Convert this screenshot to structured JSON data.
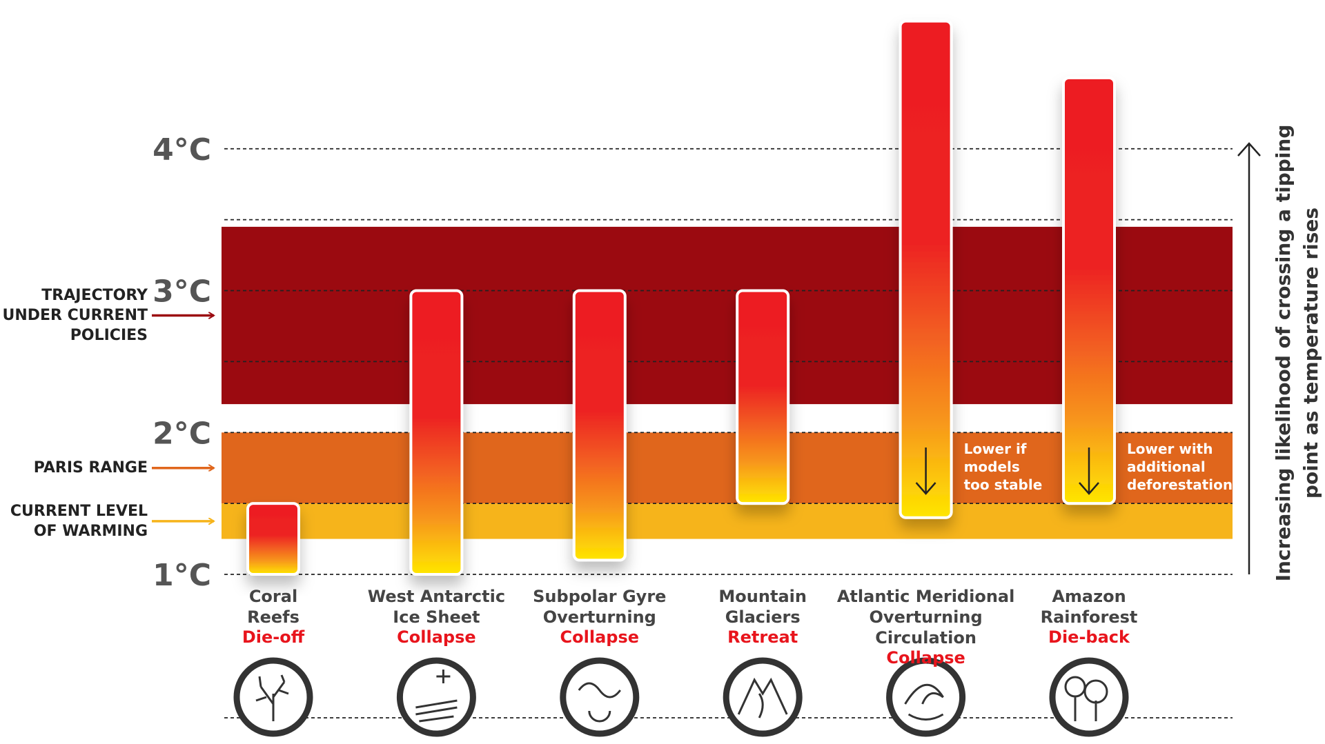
{
  "chart_data": {
    "type": "range_bar",
    "categories": [
      "Coral\nReefs",
      "West Antarctic\nIce Sheet",
      "Subpolar Gyre\nOverturning",
      "Mountain\nGlaciers",
      "Atlantic Meridional\nOverturning Circulation",
      "Amazon\nRainforest"
    ],
    "statuses": [
      "Die-off",
      "Collapse",
      "Collapse",
      "Retreat",
      "Collapse",
      "Die-back"
    ],
    "low": [
      1.0,
      1.0,
      1.1,
      1.5,
      1.4,
      1.5
    ],
    "high": [
      1.5,
      3.0,
      3.0,
      3.0,
      4.9,
      4.5
    ],
    "bar_notes": [
      null,
      null,
      null,
      null,
      "Lower if\nmodels\ntoo stable",
      "Lower with\nadditional\ndeforestation"
    ],
    "ylim": [
      1,
      5
    ],
    "yticks": [
      {
        "value": 1,
        "label": "1°C"
      },
      {
        "value": 2,
        "label": "2°C"
      },
      {
        "value": 3,
        "label": "3°C"
      },
      {
        "value": 4,
        "label": "4°C"
      }
    ],
    "minor_grid": [
      1.5,
      2.5,
      3.5
    ],
    "grid": true,
    "bands": [
      {
        "name": "TRAJECTORY\nUNDER CURRENT\nPOLICIES",
        "low": 2.2,
        "high": 3.45,
        "color": "#9b0a10"
      },
      {
        "name": "PARIS RANGE",
        "low": 1.5,
        "high": 2.0,
        "color": "#e0661c"
      },
      {
        "name": "CURRENT LEVEL\nOF WARMING",
        "low": 1.25,
        "high": 1.5,
        "color": "#f6b41b"
      }
    ],
    "y_axis_label": "Increasing likelihood of crossing a tipping\npoint as temperature rises"
  }
}
